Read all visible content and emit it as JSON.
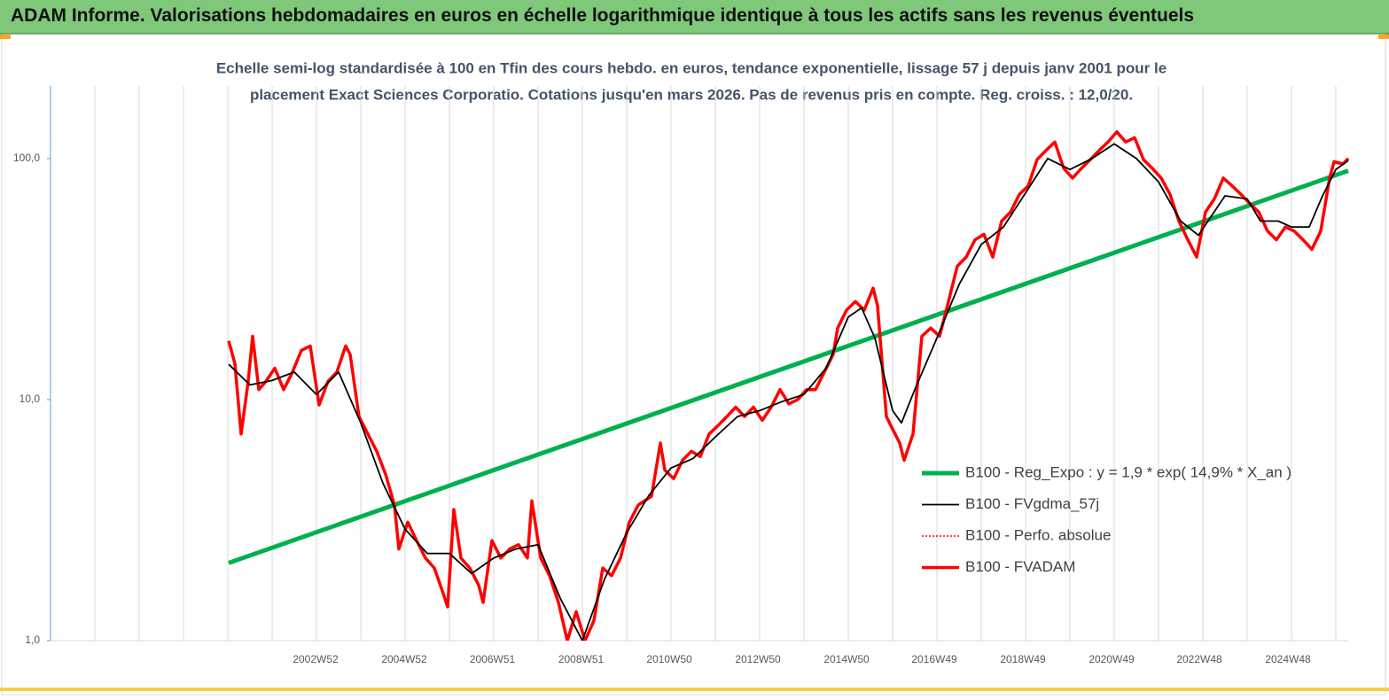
{
  "header": {
    "title": "ADAM Informe. Valorisations hebdomadaires en euros en échelle logarithmique identique à tous les actifs sans les revenus éventuels"
  },
  "chart_data": {
    "type": "line",
    "log_y": true,
    "grid": true,
    "subtitle": [
      "Echelle semi-log standardisée à 100 en Tfin des cours hebdo. en euros, tendance exponentielle, lissage 57 j depuis janv 2001 pour le",
      "placement Exact Sciences Corporatio. Cotations jusqu'en mars 2026.  Pas de revenus pris en compte. Reg. croiss. : 12,0/20."
    ],
    "xlim": [
      1997,
      2026.28
    ],
    "xticks": [
      {
        "value": 2002.98,
        "label": "2002W52"
      },
      {
        "value": 2004.98,
        "label": "2004W52"
      },
      {
        "value": 2006.97,
        "label": "2006W51"
      },
      {
        "value": 2008.97,
        "label": "2008W51"
      },
      {
        "value": 2010.96,
        "label": "2010W50"
      },
      {
        "value": 2012.96,
        "label": "2012W50"
      },
      {
        "value": 2014.96,
        "label": "2014W50"
      },
      {
        "value": 2016.94,
        "label": "2016W49"
      },
      {
        "value": 2018.94,
        "label": "2018W49"
      },
      {
        "value": 2020.94,
        "label": "2020W49"
      },
      {
        "value": 2022.92,
        "label": "2022W48"
      },
      {
        "value": 2024.92,
        "label": "2024W48"
      }
    ],
    "xgrid": [
      1998,
      1999,
      2000,
      2001,
      2002,
      2003,
      2004,
      2005,
      2006,
      2007,
      2008,
      2009,
      2010,
      2011,
      2012,
      2013,
      2014,
      2015,
      2016,
      2017,
      2018,
      2019,
      2020,
      2021,
      2022,
      2023,
      2024,
      2025,
      2026
    ],
    "ylim": [
      1,
      200
    ],
    "yticks": [
      {
        "value": 1,
        "label": "1,0"
      },
      {
        "value": 10,
        "label": "10,0"
      },
      {
        "value": 100,
        "label": "100,0"
      }
    ],
    "x": [
      2001.02,
      2001.16,
      2001.3,
      2001.46,
      2001.56,
      2001.7,
      2001.86,
      2002.06,
      2002.26,
      2002.46,
      2002.66,
      2002.86,
      2003.06,
      2003.26,
      2003.46,
      2003.66,
      2003.76,
      2003.96,
      2004.16,
      2004.36,
      2004.56,
      2004.76,
      2004.86,
      2005.06,
      2005.26,
      2005.46,
      2005.66,
      2005.86,
      2005.96,
      2006.1,
      2006.26,
      2006.46,
      2006.66,
      2006.76,
      2006.96,
      2007.16,
      2007.36,
      2007.56,
      2007.76,
      2007.86,
      2008.06,
      2008.26,
      2008.46,
      2008.66,
      2008.86,
      2009.06,
      2009.26,
      2009.46,
      2009.66,
      2009.86,
      2010.06,
      2010.26,
      2010.56,
      2010.76,
      2010.86,
      2011.06,
      2011.26,
      2011.46,
      2011.66,
      2011.86,
      2012.06,
      2012.26,
      2012.46,
      2012.66,
      2012.86,
      2013.06,
      2013.26,
      2013.46,
      2013.66,
      2013.86,
      2014.06,
      2014.26,
      2014.46,
      2014.66,
      2014.76,
      2014.96,
      2015.16,
      2015.36,
      2015.56,
      2015.66,
      2015.86,
      2015.96,
      2016.16,
      2016.26,
      2016.46,
      2016.66,
      2016.86,
      2017.06,
      2017.26,
      2017.46,
      2017.66,
      2017.86,
      2018.06,
      2018.26,
      2018.46,
      2018.66,
      2018.86,
      2019.06,
      2019.26,
      2019.46,
      2019.66,
      2019.86,
      2020.06,
      2020.26,
      2020.46,
      2020.66,
      2020.86,
      2021.06,
      2021.26,
      2021.46,
      2021.66,
      2021.86,
      2022.06,
      2022.26,
      2022.46,
      2022.66,
      2022.86,
      2023.06,
      2023.26,
      2023.46,
      2023.66,
      2023.86,
      2024.06,
      2024.26,
      2024.46,
      2024.66,
      2024.86,
      2025.06,
      2025.26,
      2025.46,
      2025.66,
      2025.86,
      2025.96,
      2026.16,
      2026.28
    ],
    "series": [
      {
        "name": "B100 - Reg_Expo : y = 1,9 * exp( 14,9% *  X_an )",
        "color": "#00b050",
        "x": [
          2001.02,
          2026.28
        ],
        "values": [
          2.1,
          89
        ]
      },
      {
        "name": "B100 - FVgdma_57j",
        "color": "#000000",
        "x": [
          2001.02,
          2001.5,
          2002,
          2002.5,
          2003,
          2003.5,
          2004,
          2004.5,
          2005,
          2005.5,
          2006,
          2006.5,
          2007,
          2007.5,
          2008,
          2008.5,
          2009,
          2009.5,
          2010,
          2010.5,
          2011,
          2011.5,
          2012,
          2012.5,
          2013,
          2013.5,
          2014,
          2014.5,
          2015,
          2015.3,
          2015.6,
          2016,
          2016.2,
          2016.5,
          2017,
          2017.5,
          2018,
          2018.5,
          2019,
          2019.5,
          2020,
          2020.5,
          2021,
          2021.5,
          2022,
          2022.5,
          2022.9,
          2023.5,
          2024,
          2024.3,
          2024.7,
          2025,
          2025.4,
          2025.7,
          2026,
          2026.28
        ],
        "values": [
          14,
          11.5,
          12,
          13,
          10.5,
          13,
          8,
          4.5,
          2.9,
          2.3,
          2.3,
          1.9,
          2.2,
          2.4,
          2.5,
          1.5,
          1.0,
          1.8,
          2.8,
          4.0,
          5.2,
          5.7,
          7.0,
          8.5,
          9.0,
          9.8,
          10.5,
          13.5,
          22,
          24,
          18,
          9,
          8,
          11,
          18,
          30,
          44,
          52,
          72,
          100,
          90,
          100,
          115,
          100,
          80,
          55,
          48,
          70,
          68,
          55,
          55,
          52,
          52,
          70,
          90,
          98
        ]
      },
      {
        "name": "B100 - Perfo. absolue",
        "color": "#ff0000",
        "values": [
          17.5,
          14.1,
          7.2,
          11.9,
          18.3,
          11,
          11.9,
          13.5,
          11,
          13,
          16,
          16.7,
          9.5,
          11.9,
          13,
          16.7,
          15.4,
          8.5,
          7.2,
          6.1,
          4.9,
          3.65,
          2.4,
          3.1,
          2.6,
          2.2,
          2.0,
          1.57,
          1.38,
          3.5,
          2.2,
          2.0,
          1.7,
          1.44,
          2.6,
          2.2,
          2.4,
          2.5,
          2.2,
          3.8,
          2.2,
          1.86,
          1.44,
          1.0,
          1.32,
          1.0,
          1.21,
          2.0,
          1.86,
          2.2,
          3.1,
          3.65,
          3.97,
          6.6,
          5.1,
          4.7,
          5.6,
          6.1,
          5.8,
          7.2,
          7.8,
          8.5,
          9.3,
          8.5,
          9.3,
          8.2,
          9.3,
          11,
          9.6,
          10,
          11,
          11,
          13,
          15.4,
          19.8,
          23.5,
          25.5,
          23.5,
          29,
          24.5,
          8.5,
          7.8,
          6.6,
          5.6,
          7.2,
          18.3,
          19.8,
          18.3,
          25.5,
          35.8,
          39,
          46,
          48.5,
          39,
          55,
          60,
          71,
          77,
          99,
          108,
          117,
          91,
          83,
          91,
          99,
          108,
          117,
          129,
          117,
          122,
          99,
          91,
          83,
          71,
          55,
          46,
          39,
          60,
          68,
          83,
          77,
          71,
          65,
          60,
          50,
          46,
          52,
          50,
          46,
          42,
          50,
          83,
          97,
          95,
          100
        ]
      },
      {
        "name": "B100 - FVADAM",
        "color": "#ff0000",
        "values": [
          17.5,
          14.1,
          7.2,
          11.9,
          18.3,
          11,
          11.9,
          13.5,
          11,
          13,
          16,
          16.7,
          9.5,
          11.9,
          13,
          16.7,
          15.4,
          8.5,
          7.2,
          6.1,
          4.9,
          3.65,
          2.4,
          3.1,
          2.6,
          2.2,
          2.0,
          1.57,
          1.38,
          3.5,
          2.2,
          2.0,
          1.7,
          1.44,
          2.6,
          2.2,
          2.4,
          2.5,
          2.2,
          3.8,
          2.2,
          1.86,
          1.44,
          1.0,
          1.32,
          1.0,
          1.21,
          2.0,
          1.86,
          2.2,
          3.1,
          3.65,
          3.97,
          6.6,
          5.1,
          4.7,
          5.6,
          6.1,
          5.8,
          7.2,
          7.8,
          8.5,
          9.3,
          8.5,
          9.3,
          8.2,
          9.3,
          11,
          9.6,
          10,
          11,
          11,
          13,
          15.4,
          19.8,
          23.5,
          25.5,
          23.5,
          29,
          24.5,
          8.5,
          7.8,
          6.6,
          5.6,
          7.2,
          18.3,
          19.8,
          18.3,
          25.5,
          35.8,
          39,
          46,
          48.5,
          39,
          55,
          60,
          71,
          77,
          99,
          108,
          117,
          91,
          83,
          91,
          99,
          108,
          117,
          129,
          117,
          122,
          99,
          91,
          83,
          71,
          55,
          46,
          39,
          60,
          68,
          83,
          77,
          71,
          65,
          60,
          50,
          46,
          52,
          50,
          46,
          42,
          50,
          83,
          97,
          95,
          100
        ]
      }
    ]
  }
}
